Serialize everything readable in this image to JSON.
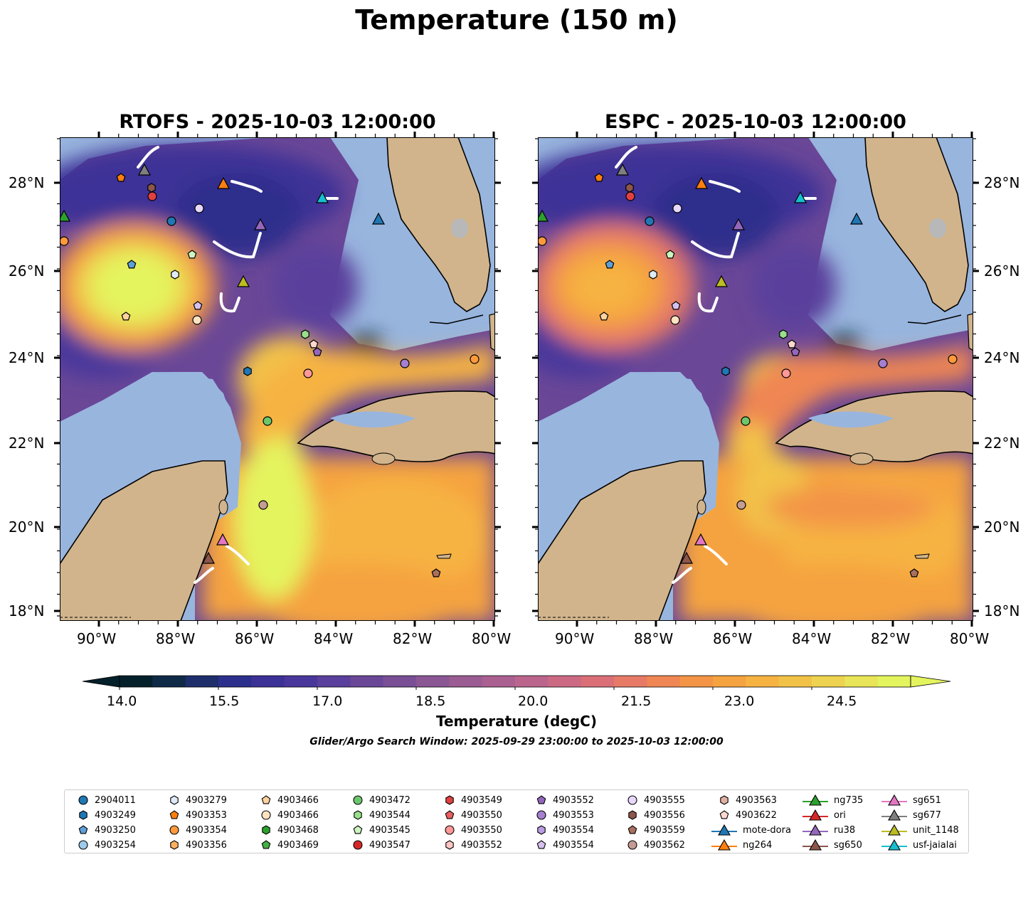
{
  "title": "Temperature (150 m)",
  "panels": [
    {
      "title": "RTOFS - 2025-10-03 12:00:00",
      "model": "RTOFS"
    },
    {
      "title": "ESPC - 2025-10-03 12:00:00",
      "model": "ESPC"
    }
  ],
  "lat_ticks": [
    "28°N",
    "26°N",
    "24°N",
    "22°N",
    "20°N",
    "18°N"
  ],
  "lon_ticks": [
    "90°W",
    "88°W",
    "86°W",
    "84°W",
    "82°W",
    "80°W"
  ],
  "colorbar": {
    "title": "Temperature (degC)",
    "tick_labels": [
      "14.0",
      "15.5",
      "17.0",
      "18.5",
      "20.0",
      "21.5",
      "23.0",
      "24.5"
    ],
    "min": 14.0,
    "max": 26.0,
    "colors": [
      "#04202a",
      "#0e2a47",
      "#1d2e6b",
      "#2d2f8c",
      "#3c3197",
      "#4a379b",
      "#5a3f9c",
      "#6a4797",
      "#7a4f96",
      "#8a5694",
      "#9a5c92",
      "#aa6090",
      "#bb658c",
      "#cc6a84",
      "#da6f77",
      "#e77a66",
      "#ef8653",
      "#f39447",
      "#f5a340",
      "#f6b342",
      "#f2c248",
      "#eed350",
      "#e8e558",
      "#e4f45e"
    ]
  },
  "search_window": "Glider/Argo Search Window: 2025-09-29 23:00:00 to 2025-10-03 12:00:00",
  "colors": {
    "land": "#d1b48c",
    "water": "#98b5de",
    "track": "#ffffff"
  },
  "legend": [
    {
      "label": "2904011",
      "marker": "circle",
      "color": "#1f77b4"
    },
    {
      "label": "4903249",
      "marker": "hexagon",
      "color": "#1f77b4"
    },
    {
      "label": "4903250",
      "marker": "pentagon",
      "color": "#5f9fd6"
    },
    {
      "label": "4903254",
      "marker": "circle",
      "color": "#9ecae9"
    },
    {
      "label": "4903279",
      "marker": "hexagon",
      "color": "#deebf7"
    },
    {
      "label": "4903353",
      "marker": "pentagon",
      "color": "#ff7f0e"
    },
    {
      "label": "4903354",
      "marker": "circle",
      "color": "#ff9a3c"
    },
    {
      "label": "4903356",
      "marker": "hexagon",
      "color": "#ffb060"
    },
    {
      "label": "4903466",
      "marker": "pentagon",
      "color": "#ffd3a0"
    },
    {
      "label": "4903466",
      "marker": "circle",
      "color": "#ffe3c0"
    },
    {
      "label": "4903468",
      "marker": "hexagon",
      "color": "#2ca02c"
    },
    {
      "label": "4903469",
      "marker": "pentagon",
      "color": "#43b043"
    },
    {
      "label": "4903472",
      "marker": "circle",
      "color": "#6cc66c"
    },
    {
      "label": "4903544",
      "marker": "hexagon",
      "color": "#98df8a"
    },
    {
      "label": "4903545",
      "marker": "pentagon",
      "color": "#ccf5c0"
    },
    {
      "label": "4903547",
      "marker": "circle",
      "color": "#d62728"
    },
    {
      "label": "4903549",
      "marker": "hexagon",
      "color": "#e04040"
    },
    {
      "label": "4903550",
      "marker": "pentagon",
      "color": "#ea6060"
    },
    {
      "label": "4903550",
      "marker": "circle",
      "color": "#ff9896"
    },
    {
      "label": "4903552",
      "marker": "hexagon",
      "color": "#ffc6c4"
    },
    {
      "label": "4903552",
      "marker": "pentagon",
      "color": "#9467bd"
    },
    {
      "label": "4903553",
      "marker": "circle",
      "color": "#a57fd0"
    },
    {
      "label": "4903554",
      "marker": "hexagon",
      "color": "#b99de0"
    },
    {
      "label": "4903554",
      "marker": "pentagon",
      "color": "#d6c0f0"
    },
    {
      "label": "4903555",
      "marker": "circle",
      "color": "#e8d8fc"
    },
    {
      "label": "4903556",
      "marker": "hexagon",
      "color": "#8c564b"
    },
    {
      "label": "4903559",
      "marker": "pentagon",
      "color": "#a8705f"
    },
    {
      "label": "4903562",
      "marker": "circle",
      "color": "#c49c94"
    },
    {
      "label": "4903563",
      "marker": "hexagon",
      "color": "#e0b0a4"
    },
    {
      "label": "4903622",
      "marker": "pentagon",
      "color": "#fcd8d0"
    },
    {
      "label": "mote-dora",
      "marker": "triangle-line",
      "color": "#1f77b4"
    },
    {
      "label": "ng264",
      "marker": "triangle-line",
      "color": "#ff7f0e"
    },
    {
      "label": "ng735",
      "marker": "triangle-line",
      "color": "#2ca02c"
    },
    {
      "label": "ori",
      "marker": "triangle-line",
      "color": "#d62728"
    },
    {
      "label": "ru38",
      "marker": "triangle-line",
      "color": "#9467bd"
    },
    {
      "label": "sg650",
      "marker": "triangle-line",
      "color": "#8c564b"
    },
    {
      "label": "sg651",
      "marker": "triangle-line",
      "color": "#e377c2"
    },
    {
      "label": "sg677",
      "marker": "triangle-line",
      "color": "#7f7f7f"
    },
    {
      "label": "unit_1148",
      "marker": "triangle-line",
      "color": "#bcbd22"
    },
    {
      "label": "usf-jaialai",
      "marker": "triangle-line",
      "color": "#17becf"
    }
  ]
}
